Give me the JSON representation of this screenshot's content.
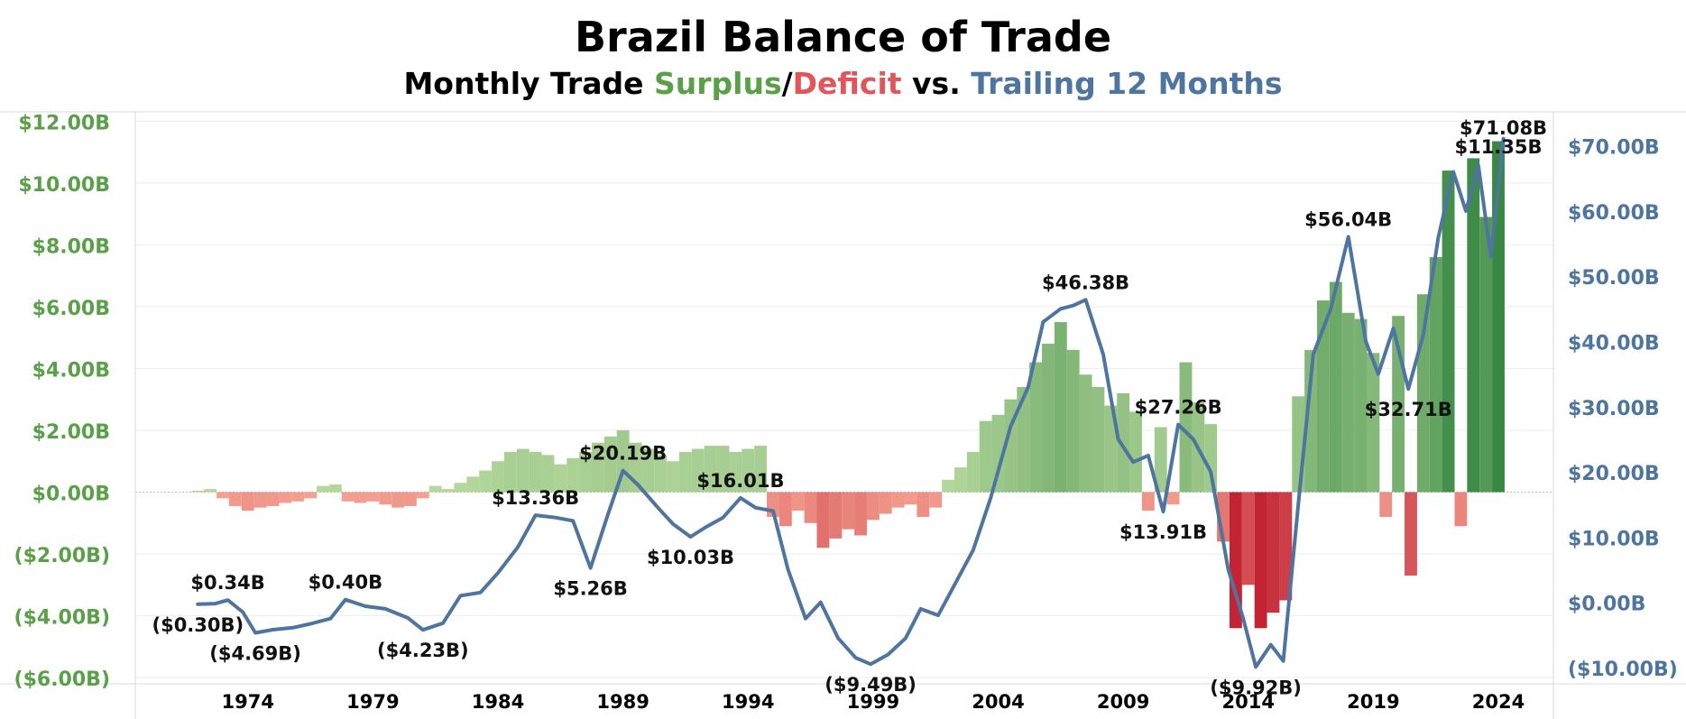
{
  "title": "Brazil Balance of Trade",
  "subtitle": {
    "prefix": "Monthly Trade ",
    "surplus": "Surplus",
    "slash": "/",
    "deficit": "Deficit",
    "vs": " vs. ",
    "trailing": "Trailing 12 Months"
  },
  "colors": {
    "surplus": "#5aa048",
    "deficit": "#e0565b",
    "trailing": "#4e74a0",
    "left_axis": "#5aa048",
    "right_axis": "#4e74a0"
  },
  "chart_data": {
    "type": "bar",
    "left_axis": {
      "ylim": [
        -6.2,
        12.3
      ],
      "ticks": [
        12,
        10,
        8,
        6,
        4,
        2,
        0,
        -2,
        -4,
        -6
      ],
      "tick_labels": [
        "$12.00B",
        "$10.00B",
        "$8.00B",
        "$6.00B",
        "$4.00B",
        "$2.00B",
        "$0.00B",
        "($2.00B)",
        "($4.00B)",
        "($6.00B)"
      ]
    },
    "right_axis": {
      "ylim": [
        -12.5,
        75.2
      ],
      "ticks": [
        70,
        60,
        50,
        40,
        30,
        20,
        10,
        0,
        -10
      ],
      "tick_labels": [
        "$70.00B",
        "$60.00B",
        "$50.00B",
        "$40.00B",
        "$30.00B",
        "$20.00B",
        "$10.00B",
        "$0.00B",
        "($10.00B)"
      ]
    },
    "x_axis": {
      "xlim": [
        1969.5,
        2026.2
      ],
      "ticks": [
        1974,
        1979,
        1984,
        1989,
        1994,
        1999,
        2004,
        2009,
        2014,
        2019,
        2024
      ],
      "tick_labels": [
        "1974",
        "1979",
        "1984",
        "1989",
        "1994",
        "1999",
        "2004",
        "2009",
        "2014",
        "2019",
        "2024"
      ]
    },
    "monthly_bars": [
      {
        "x": 1972.0,
        "y": 0.05
      },
      {
        "x": 1972.5,
        "y": 0.1
      },
      {
        "x": 1973.0,
        "y": -0.2
      },
      {
        "x": 1973.5,
        "y": -0.45
      },
      {
        "x": 1974.0,
        "y": -0.6
      },
      {
        "x": 1974.5,
        "y": -0.5
      },
      {
        "x": 1975.0,
        "y": -0.45
      },
      {
        "x": 1975.5,
        "y": -0.35
      },
      {
        "x": 1976.0,
        "y": -0.3
      },
      {
        "x": 1976.5,
        "y": -0.2
      },
      {
        "x": 1977.0,
        "y": 0.2
      },
      {
        "x": 1977.5,
        "y": 0.25
      },
      {
        "x": 1978.0,
        "y": -0.3
      },
      {
        "x": 1978.5,
        "y": -0.35
      },
      {
        "x": 1979.0,
        "y": -0.3
      },
      {
        "x": 1979.5,
        "y": -0.4
      },
      {
        "x": 1980.0,
        "y": -0.5
      },
      {
        "x": 1980.5,
        "y": -0.45
      },
      {
        "x": 1981.0,
        "y": -0.2
      },
      {
        "x": 1981.5,
        "y": 0.2
      },
      {
        "x": 1982.0,
        "y": 0.1
      },
      {
        "x": 1982.5,
        "y": 0.3
      },
      {
        "x": 1983.0,
        "y": 0.5
      },
      {
        "x": 1983.5,
        "y": 0.7
      },
      {
        "x": 1984.0,
        "y": 1.0
      },
      {
        "x": 1984.5,
        "y": 1.3
      },
      {
        "x": 1985.0,
        "y": 1.4
      },
      {
        "x": 1985.5,
        "y": 1.3
      },
      {
        "x": 1986.0,
        "y": 1.2
      },
      {
        "x": 1986.5,
        "y": 0.9
      },
      {
        "x": 1987.0,
        "y": 1.1
      },
      {
        "x": 1987.5,
        "y": 1.3
      },
      {
        "x": 1988.0,
        "y": 1.6
      },
      {
        "x": 1988.5,
        "y": 1.8
      },
      {
        "x": 1989.0,
        "y": 2.0
      },
      {
        "x": 1989.5,
        "y": 1.6
      },
      {
        "x": 1990.0,
        "y": 1.4
      },
      {
        "x": 1990.5,
        "y": 1.2
      },
      {
        "x": 1991.0,
        "y": 1.0
      },
      {
        "x": 1991.5,
        "y": 1.3
      },
      {
        "x": 1992.0,
        "y": 1.4
      },
      {
        "x": 1992.5,
        "y": 1.5
      },
      {
        "x": 1993.0,
        "y": 1.5
      },
      {
        "x": 1993.5,
        "y": 1.3
      },
      {
        "x": 1994.0,
        "y": 1.4
      },
      {
        "x": 1994.5,
        "y": 1.5
      },
      {
        "x": 1995.0,
        "y": -0.8
      },
      {
        "x": 1995.5,
        "y": -1.1
      },
      {
        "x": 1996.0,
        "y": -0.6
      },
      {
        "x": 1996.5,
        "y": -1.0
      },
      {
        "x": 1997.0,
        "y": -1.8
      },
      {
        "x": 1997.5,
        "y": -1.5
      },
      {
        "x": 1998.0,
        "y": -1.2
      },
      {
        "x": 1998.5,
        "y": -1.4
      },
      {
        "x": 1999.0,
        "y": -0.9
      },
      {
        "x": 1999.5,
        "y": -0.7
      },
      {
        "x": 2000.0,
        "y": -0.5
      },
      {
        "x": 2000.5,
        "y": -0.4
      },
      {
        "x": 2001.0,
        "y": -0.8
      },
      {
        "x": 2001.5,
        "y": -0.5
      },
      {
        "x": 2002.0,
        "y": 0.4
      },
      {
        "x": 2002.5,
        "y": 0.8
      },
      {
        "x": 2003.0,
        "y": 1.3
      },
      {
        "x": 2003.5,
        "y": 2.3
      },
      {
        "x": 2004.0,
        "y": 2.5
      },
      {
        "x": 2004.5,
        "y": 3.0
      },
      {
        "x": 2005.0,
        "y": 3.4
      },
      {
        "x": 2005.5,
        "y": 4.2
      },
      {
        "x": 2006.0,
        "y": 4.8
      },
      {
        "x": 2006.5,
        "y": 5.5
      },
      {
        "x": 2007.0,
        "y": 4.6
      },
      {
        "x": 2007.5,
        "y": 3.8
      },
      {
        "x": 2008.0,
        "y": 3.4
      },
      {
        "x": 2008.5,
        "y": 2.8
      },
      {
        "x": 2009.0,
        "y": 3.2
      },
      {
        "x": 2009.5,
        "y": 2.6
      },
      {
        "x": 2010.0,
        "y": -0.6
      },
      {
        "x": 2010.5,
        "y": 2.1
      },
      {
        "x": 2011.0,
        "y": -0.4
      },
      {
        "x": 2011.5,
        "y": 4.2
      },
      {
        "x": 2012.0,
        "y": 2.9
      },
      {
        "x": 2012.5,
        "y": 2.2
      },
      {
        "x": 2013.0,
        "y": -1.6
      },
      {
        "x": 2013.5,
        "y": -4.4
      },
      {
        "x": 2014.0,
        "y": -3.0
      },
      {
        "x": 2014.5,
        "y": -4.4
      },
      {
        "x": 2015.0,
        "y": -3.9
      },
      {
        "x": 2015.5,
        "y": -3.5
      },
      {
        "x": 2016.0,
        "y": 3.1
      },
      {
        "x": 2016.5,
        "y": 4.6
      },
      {
        "x": 2017.0,
        "y": 6.2
      },
      {
        "x": 2017.5,
        "y": 6.8
      },
      {
        "x": 2018.0,
        "y": 5.8
      },
      {
        "x": 2018.5,
        "y": 5.6
      },
      {
        "x": 2019.0,
        "y": 4.5
      },
      {
        "x": 2019.5,
        "y": -0.8
      },
      {
        "x": 2020.0,
        "y": 5.7
      },
      {
        "x": 2020.5,
        "y": -2.7
      },
      {
        "x": 2021.0,
        "y": 6.4
      },
      {
        "x": 2021.5,
        "y": 7.6
      },
      {
        "x": 2022.0,
        "y": 10.4
      },
      {
        "x": 2022.5,
        "y": -1.1
      },
      {
        "x": 2023.0,
        "y": 10.8
      },
      {
        "x": 2023.5,
        "y": 8.9
      },
      {
        "x": 2024.0,
        "y": 11.35
      }
    ],
    "trailing_12m_line": [
      {
        "x": 1972.0,
        "y": -0.3
      },
      {
        "x": 1972.7,
        "y": -0.2
      },
      {
        "x": 1973.2,
        "y": 0.34
      },
      {
        "x": 1973.8,
        "y": -1.5
      },
      {
        "x": 1974.3,
        "y": -4.69
      },
      {
        "x": 1975.0,
        "y": -4.2
      },
      {
        "x": 1975.8,
        "y": -3.9
      },
      {
        "x": 1976.5,
        "y": -3.3
      },
      {
        "x": 1977.3,
        "y": -2.5
      },
      {
        "x": 1977.9,
        "y": 0.4
      },
      {
        "x": 1978.7,
        "y": -0.6
      },
      {
        "x": 1979.5,
        "y": -1.0
      },
      {
        "x": 1980.4,
        "y": -2.4
      },
      {
        "x": 1981.0,
        "y": -4.23
      },
      {
        "x": 1981.8,
        "y": -3.2
      },
      {
        "x": 1982.5,
        "y": 1.0
      },
      {
        "x": 1983.3,
        "y": 1.5
      },
      {
        "x": 1984.0,
        "y": 4.5
      },
      {
        "x": 1984.8,
        "y": 8.5
      },
      {
        "x": 1985.5,
        "y": 13.36
      },
      {
        "x": 1986.3,
        "y": 13.0
      },
      {
        "x": 1987.0,
        "y": 12.5
      },
      {
        "x": 1987.7,
        "y": 5.26
      },
      {
        "x": 1988.4,
        "y": 13.5
      },
      {
        "x": 1989.0,
        "y": 20.19
      },
      {
        "x": 1989.6,
        "y": 18.0
      },
      {
        "x": 1990.4,
        "y": 14.5
      },
      {
        "x": 1991.0,
        "y": 12.0
      },
      {
        "x": 1991.7,
        "y": 10.03
      },
      {
        "x": 1992.3,
        "y": 11.5
      },
      {
        "x": 1993.0,
        "y": 13.0
      },
      {
        "x": 1993.7,
        "y": 16.01
      },
      {
        "x": 1994.3,
        "y": 14.5
      },
      {
        "x": 1995.0,
        "y": 14.0
      },
      {
        "x": 1995.6,
        "y": 5.0
      },
      {
        "x": 1996.3,
        "y": -2.5
      },
      {
        "x": 1996.9,
        "y": 0.0
      },
      {
        "x": 1997.6,
        "y": -5.5
      },
      {
        "x": 1998.3,
        "y": -8.5
      },
      {
        "x": 1998.9,
        "y": -9.49
      },
      {
        "x": 1999.6,
        "y": -8.0
      },
      {
        "x": 2000.3,
        "y": -5.5
      },
      {
        "x": 2000.9,
        "y": -1.0
      },
      {
        "x": 2001.6,
        "y": -2.0
      },
      {
        "x": 2002.3,
        "y": 3.0
      },
      {
        "x": 2003.0,
        "y": 8.0
      },
      {
        "x": 2003.7,
        "y": 16.0
      },
      {
        "x": 2004.5,
        "y": 27.0
      },
      {
        "x": 2005.2,
        "y": 33.0
      },
      {
        "x": 2005.8,
        "y": 43.0
      },
      {
        "x": 2006.5,
        "y": 45.0
      },
      {
        "x": 2007.0,
        "y": 45.5
      },
      {
        "x": 2007.5,
        "y": 46.38
      },
      {
        "x": 2008.2,
        "y": 38.0
      },
      {
        "x": 2008.8,
        "y": 25.0
      },
      {
        "x": 2009.4,
        "y": 21.5
      },
      {
        "x": 2010.0,
        "y": 22.5
      },
      {
        "x": 2010.6,
        "y": 13.91
      },
      {
        "x": 2011.2,
        "y": 27.26
      },
      {
        "x": 2011.8,
        "y": 25.0
      },
      {
        "x": 2012.5,
        "y": 20.0
      },
      {
        "x": 2013.2,
        "y": 5.0
      },
      {
        "x": 2013.8,
        "y": -2.5
      },
      {
        "x": 2014.3,
        "y": -9.92
      },
      {
        "x": 2014.9,
        "y": -6.5
      },
      {
        "x": 2015.4,
        "y": -9.0
      },
      {
        "x": 2016.0,
        "y": 15.0
      },
      {
        "x": 2016.6,
        "y": 38.0
      },
      {
        "x": 2017.3,
        "y": 45.0
      },
      {
        "x": 2018.0,
        "y": 56.04
      },
      {
        "x": 2018.7,
        "y": 40.0
      },
      {
        "x": 2019.2,
        "y": 35.0
      },
      {
        "x": 2019.8,
        "y": 42.0
      },
      {
        "x": 2020.4,
        "y": 32.71
      },
      {
        "x": 2021.0,
        "y": 41.0
      },
      {
        "x": 2021.6,
        "y": 56.0
      },
      {
        "x": 2022.2,
        "y": 66.0
      },
      {
        "x": 2022.7,
        "y": 60.0
      },
      {
        "x": 2023.2,
        "y": 67.0
      },
      {
        "x": 2023.7,
        "y": 53.0
      },
      {
        "x": 2024.2,
        "y": 71.08
      }
    ],
    "annotations": [
      {
        "text": "$0.34B",
        "x": 1973.2,
        "y": 0.34,
        "pos": "above"
      },
      {
        "text": "($0.30B)",
        "x": 1972.0,
        "y": -0.3,
        "pos": "below"
      },
      {
        "text": "($4.69B)",
        "x": 1974.3,
        "y": -4.69,
        "pos": "below"
      },
      {
        "text": "$0.40B",
        "x": 1977.9,
        "y": 0.4,
        "pos": "above"
      },
      {
        "text": "($4.23B)",
        "x": 1981.0,
        "y": -4.23,
        "pos": "below"
      },
      {
        "text": "$13.36B",
        "x": 1985.5,
        "y": 13.36,
        "pos": "above"
      },
      {
        "text": "$5.26B",
        "x": 1987.7,
        "y": 5.26,
        "pos": "below"
      },
      {
        "text": "$20.19B",
        "x": 1989.0,
        "y": 20.19,
        "pos": "above"
      },
      {
        "text": "$10.03B",
        "x": 1991.7,
        "y": 10.03,
        "pos": "below"
      },
      {
        "text": "$16.01B",
        "x": 1993.7,
        "y": 16.01,
        "pos": "above"
      },
      {
        "text": "($9.49B)",
        "x": 1998.9,
        "y": -9.49,
        "pos": "below"
      },
      {
        "text": "$46.38B",
        "x": 2007.5,
        "y": 46.38,
        "pos": "above"
      },
      {
        "text": "$13.91B",
        "x": 2010.6,
        "y": 13.91,
        "pos": "below"
      },
      {
        "text": "$27.26B",
        "x": 2011.2,
        "y": 27.26,
        "pos": "above"
      },
      {
        "text": "($9.92B)",
        "x": 2014.3,
        "y": -9.92,
        "pos": "below"
      },
      {
        "text": "$56.04B",
        "x": 2018.0,
        "y": 56.04,
        "pos": "above"
      },
      {
        "text": "$32.71B",
        "x": 2020.4,
        "y": 32.71,
        "pos": "below"
      },
      {
        "text": "$71.08B",
        "x": 2024.2,
        "y": 71.08,
        "pos": "above"
      },
      {
        "text": "$11.35B",
        "x": 2024.0,
        "y": 11.35,
        "pos": "above-bar"
      }
    ]
  }
}
